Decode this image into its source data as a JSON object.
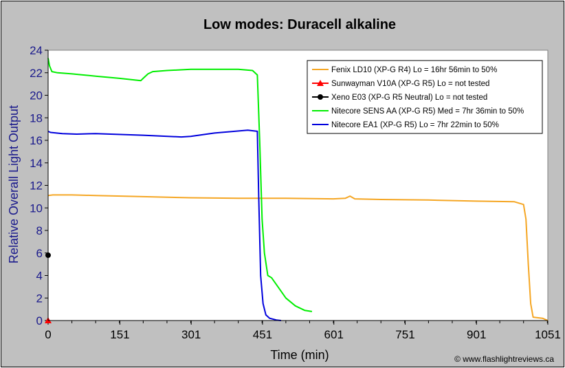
{
  "chart_data": {
    "type": "line",
    "title": "Low modes: Duracell alkaline",
    "xlabel": "Time (min)",
    "ylabel": "Relative Overall Light Output",
    "xlim": [
      0,
      1051
    ],
    "ylim": [
      0,
      24
    ],
    "x_ticks": [
      0,
      151,
      301,
      451,
      601,
      751,
      901,
      1051
    ],
    "y_ticks": [
      0,
      2,
      4,
      6,
      8,
      10,
      12,
      14,
      16,
      18,
      20,
      22,
      24
    ],
    "grid": false,
    "legend_position": "top-right",
    "copyright": "© www.flashlightreviews.ca",
    "series": [
      {
        "name": "Fenix LD10 (XP-G R4) Lo = 16hr 56min to 50%",
        "color": "#f5a623",
        "marker": "none",
        "x": [
          0,
          10,
          50,
          100,
          200,
          300,
          400,
          500,
          600,
          625,
          635,
          645,
          700,
          800,
          900,
          980,
          1000,
          1005,
          1010,
          1015,
          1020,
          1040,
          1051
        ],
        "y": [
          11.1,
          11.15,
          11.15,
          11.1,
          11.0,
          10.9,
          10.85,
          10.85,
          10.8,
          10.85,
          11.05,
          10.8,
          10.75,
          10.7,
          10.6,
          10.55,
          10.3,
          9.0,
          5.0,
          1.5,
          0.3,
          0.2,
          0.0
        ]
      },
      {
        "name": "Sunwayman V10A (XP-G R5) Lo = not tested",
        "color": "#ff0000",
        "marker": "triangle",
        "x": [
          0
        ],
        "y": [
          0
        ]
      },
      {
        "name": "Xeno E03 (XP-G R5 Neutral) Lo = not tested",
        "color": "#000000",
        "marker": "circle",
        "x": [
          0
        ],
        "y": [
          5.8
        ]
      },
      {
        "name": "Nitecore SENS AA (XP-G R5) Med = 7hr 36min to 50%",
        "color": "#00ee00",
        "marker": "none",
        "x": [
          0,
          3,
          8,
          20,
          50,
          100,
          150,
          195,
          200,
          210,
          220,
          250,
          300,
          350,
          400,
          430,
          440,
          445,
          450,
          455,
          462,
          470,
          480,
          500,
          520,
          540,
          555
        ],
        "y": [
          23.3,
          22.6,
          22.1,
          22.0,
          21.9,
          21.7,
          21.5,
          21.3,
          21.5,
          21.9,
          22.1,
          22.2,
          22.3,
          22.3,
          22.3,
          22.2,
          21.8,
          16.0,
          9.0,
          6.0,
          4.0,
          3.8,
          3.2,
          2.0,
          1.3,
          0.9,
          0.8
        ]
      },
      {
        "name": "Nitecore EA1 (XP-G R5) Lo = 7hr 22min to 50%",
        "color": "#0000dd",
        "marker": "none",
        "x": [
          0,
          5,
          30,
          60,
          100,
          200,
          280,
          300,
          350,
          420,
          440,
          443,
          447,
          452,
          458,
          466,
          480,
          490
        ],
        "y": [
          16.8,
          16.7,
          16.6,
          16.55,
          16.6,
          16.45,
          16.3,
          16.35,
          16.65,
          16.9,
          16.8,
          11.0,
          4.0,
          1.5,
          0.5,
          0.2,
          0.05,
          0.0
        ]
      }
    ]
  }
}
